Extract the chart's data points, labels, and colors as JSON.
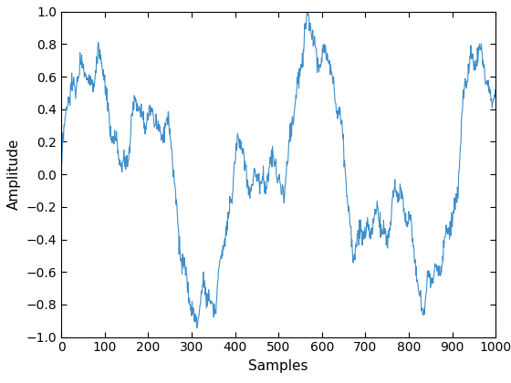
{
  "N": 1000,
  "xlabel": "Samples",
  "ylabel": "Amplitude",
  "xlim": [
    0,
    1000
  ],
  "ylim": [
    -1,
    1
  ],
  "yticks": [
    -1,
    -0.8,
    -0.6,
    -0.4,
    -0.2,
    0,
    0.2,
    0.4,
    0.6,
    0.8,
    1
  ],
  "xticks": [
    0,
    100,
    200,
    300,
    400,
    500,
    600,
    700,
    800,
    900,
    1000
  ],
  "line_color": "#3f8ec8",
  "line_width": 0.8,
  "bg_color": "#ffffff",
  "seed": 0,
  "freq1": 2.2,
  "freq2": 5.5,
  "freq3": 13,
  "freq4": 25,
  "freq5": 50,
  "amp1": 0.55,
  "amp2": 0.35,
  "amp3": 0.12,
  "amp4": 0.07,
  "amp5": 0.04,
  "noise_amp": 0.03,
  "xlabel_fontsize": 11,
  "ylabel_fontsize": 11,
  "tick_fontsize": 10,
  "matlab_style": true
}
